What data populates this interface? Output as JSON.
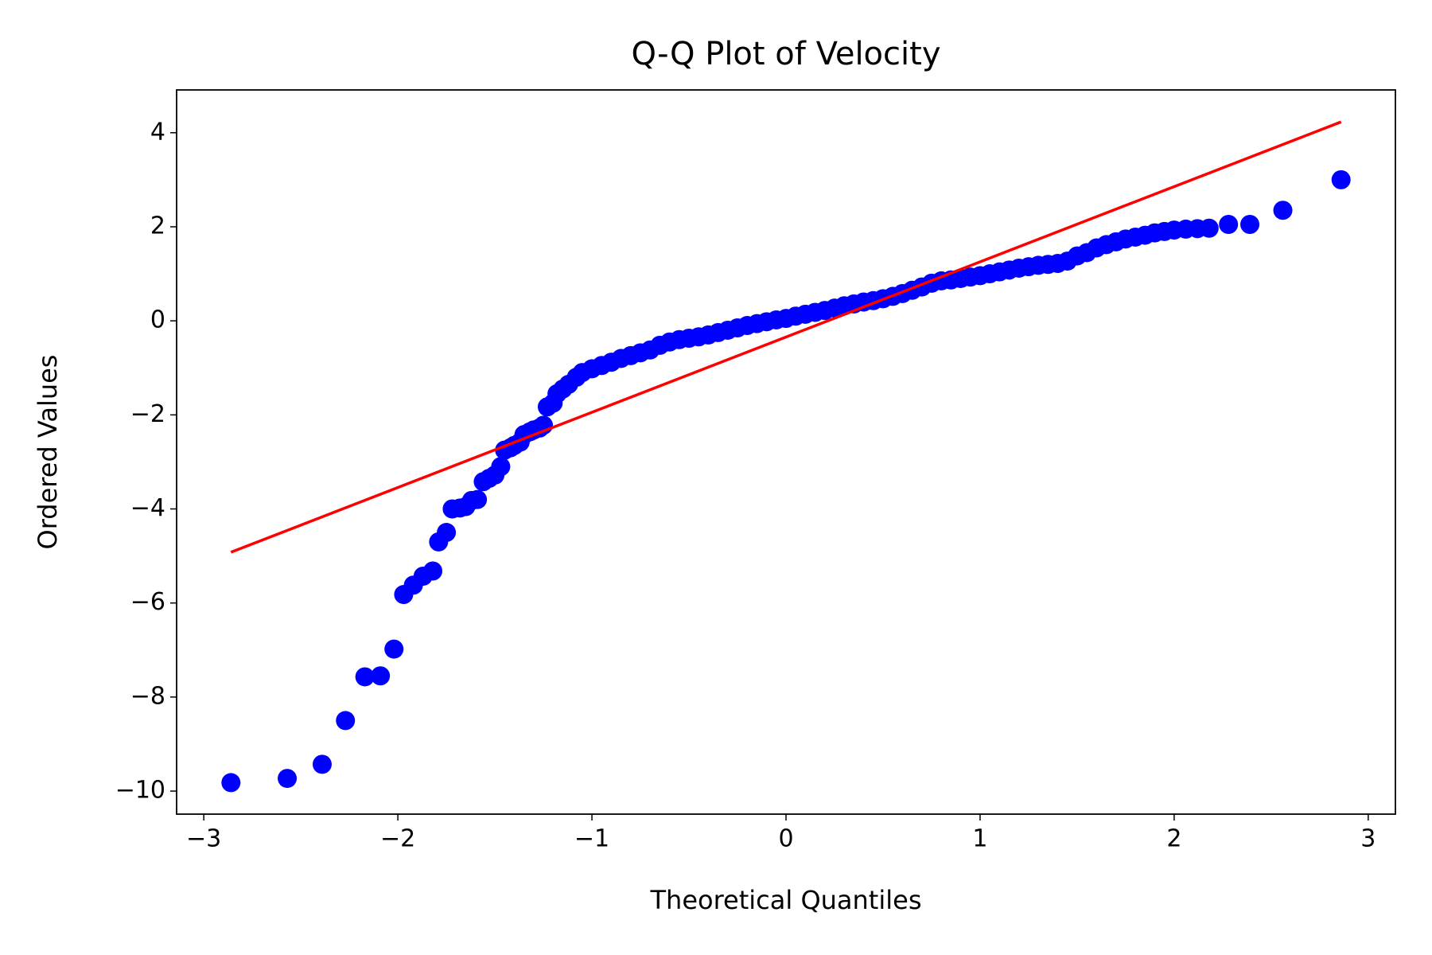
{
  "chart_data": {
    "type": "scatter",
    "title": "Q-Q Plot of Velocity",
    "x_label": "Theoretical Quantiles",
    "y_label": "Ordered Values",
    "color": "#0000ff",
    "x": [
      -2.86,
      -2.57,
      -2.39,
      -2.27,
      -2.17,
      -2.09,
      -2.02,
      -1.97,
      -1.92,
      -1.87,
      -1.82,
      -1.79,
      -1.75,
      -1.72,
      -1.68,
      -1.65,
      -1.62,
      -1.59,
      -1.56,
      -1.53,
      -1.5,
      -1.47,
      -1.45,
      -1.42,
      -1.4,
      -1.37,
      -1.35,
      -1.32,
      -1.3,
      -1.27,
      -1.25,
      -1.23,
      -1.2,
      -1.18,
      -1.15,
      -1.12,
      -1.08,
      -1.05,
      -1.0,
      -0.95,
      -0.9,
      -0.85,
      -0.8,
      -0.75,
      -0.7,
      -0.65,
      -0.6,
      -0.55,
      -0.5,
      -0.45,
      -0.4,
      -0.35,
      -0.3,
      -0.25,
      -0.2,
      -0.15,
      -0.1,
      -0.05,
      0,
      0.05,
      0.1,
      0.15,
      0.2,
      0.25,
      0.3,
      0.35,
      0.4,
      0.45,
      0.5,
      0.55,
      0.6,
      0.65,
      0.7,
      0.75,
      0.8,
      0.85,
      0.9,
      0.95,
      1.0,
      1.05,
      1.1,
      1.15,
      1.2,
      1.25,
      1.3,
      1.35,
      1.4,
      1.45,
      1.5,
      1.55,
      1.6,
      1.65,
      1.7,
      1.75,
      1.8,
      1.85,
      1.9,
      1.95,
      2.0,
      2.06,
      2.12,
      2.18,
      2.28,
      2.39,
      2.56,
      2.86
    ],
    "values": [
      -9.82,
      -9.73,
      -9.43,
      -8.5,
      -7.57,
      -7.55,
      -6.98,
      -5.82,
      -5.62,
      -5.43,
      -5.32,
      -4.7,
      -4.5,
      -4.0,
      -3.98,
      -3.95,
      -3.82,
      -3.8,
      -3.42,
      -3.35,
      -3.28,
      -3.1,
      -2.75,
      -2.7,
      -2.65,
      -2.58,
      -2.42,
      -2.36,
      -2.32,
      -2.28,
      -2.22,
      -1.83,
      -1.75,
      -1.55,
      -1.45,
      -1.35,
      -1.2,
      -1.1,
      -1.02,
      -0.95,
      -0.88,
      -0.8,
      -0.74,
      -0.68,
      -0.62,
      -0.52,
      -0.45,
      -0.4,
      -0.37,
      -0.34,
      -0.3,
      -0.25,
      -0.2,
      -0.15,
      -0.1,
      -0.06,
      -0.02,
      0.02,
      0.05,
      0.1,
      0.14,
      0.18,
      0.22,
      0.27,
      0.32,
      0.36,
      0.4,
      0.43,
      0.47,
      0.52,
      0.58,
      0.65,
      0.72,
      0.8,
      0.85,
      0.87,
      0.9,
      0.93,
      0.96,
      1.0,
      1.04,
      1.08,
      1.12,
      1.15,
      1.18,
      1.2,
      1.22,
      1.27,
      1.38,
      1.45,
      1.55,
      1.62,
      1.68,
      1.74,
      1.78,
      1.82,
      1.87,
      1.9,
      1.93,
      1.95,
      1.96,
      1.97,
      2.05,
      2.05,
      2.35,
      3.0
    ],
    "fit_line": {
      "x": [
        -2.86,
        2.86
      ],
      "values": [
        -4.92,
        4.23
      ],
      "color": "#ff0000"
    },
    "xlim": [
      -3.14,
      3.14
    ],
    "ylim": [
      -10.49,
      4.91
    ],
    "xticks": [
      {
        "value": -3,
        "label": "−3"
      },
      {
        "value": -2,
        "label": "−2"
      },
      {
        "value": -1,
        "label": "−1"
      },
      0,
      1,
      2,
      3
    ],
    "yticks": [
      {
        "value": -10,
        "label": "−10"
      },
      {
        "value": -8,
        "label": "−8"
      },
      {
        "value": -6,
        "label": "−6"
      },
      {
        "value": -4,
        "label": "−4"
      },
      {
        "value": -2,
        "label": "−2"
      },
      0,
      2,
      4
    ],
    "grid": false
  }
}
